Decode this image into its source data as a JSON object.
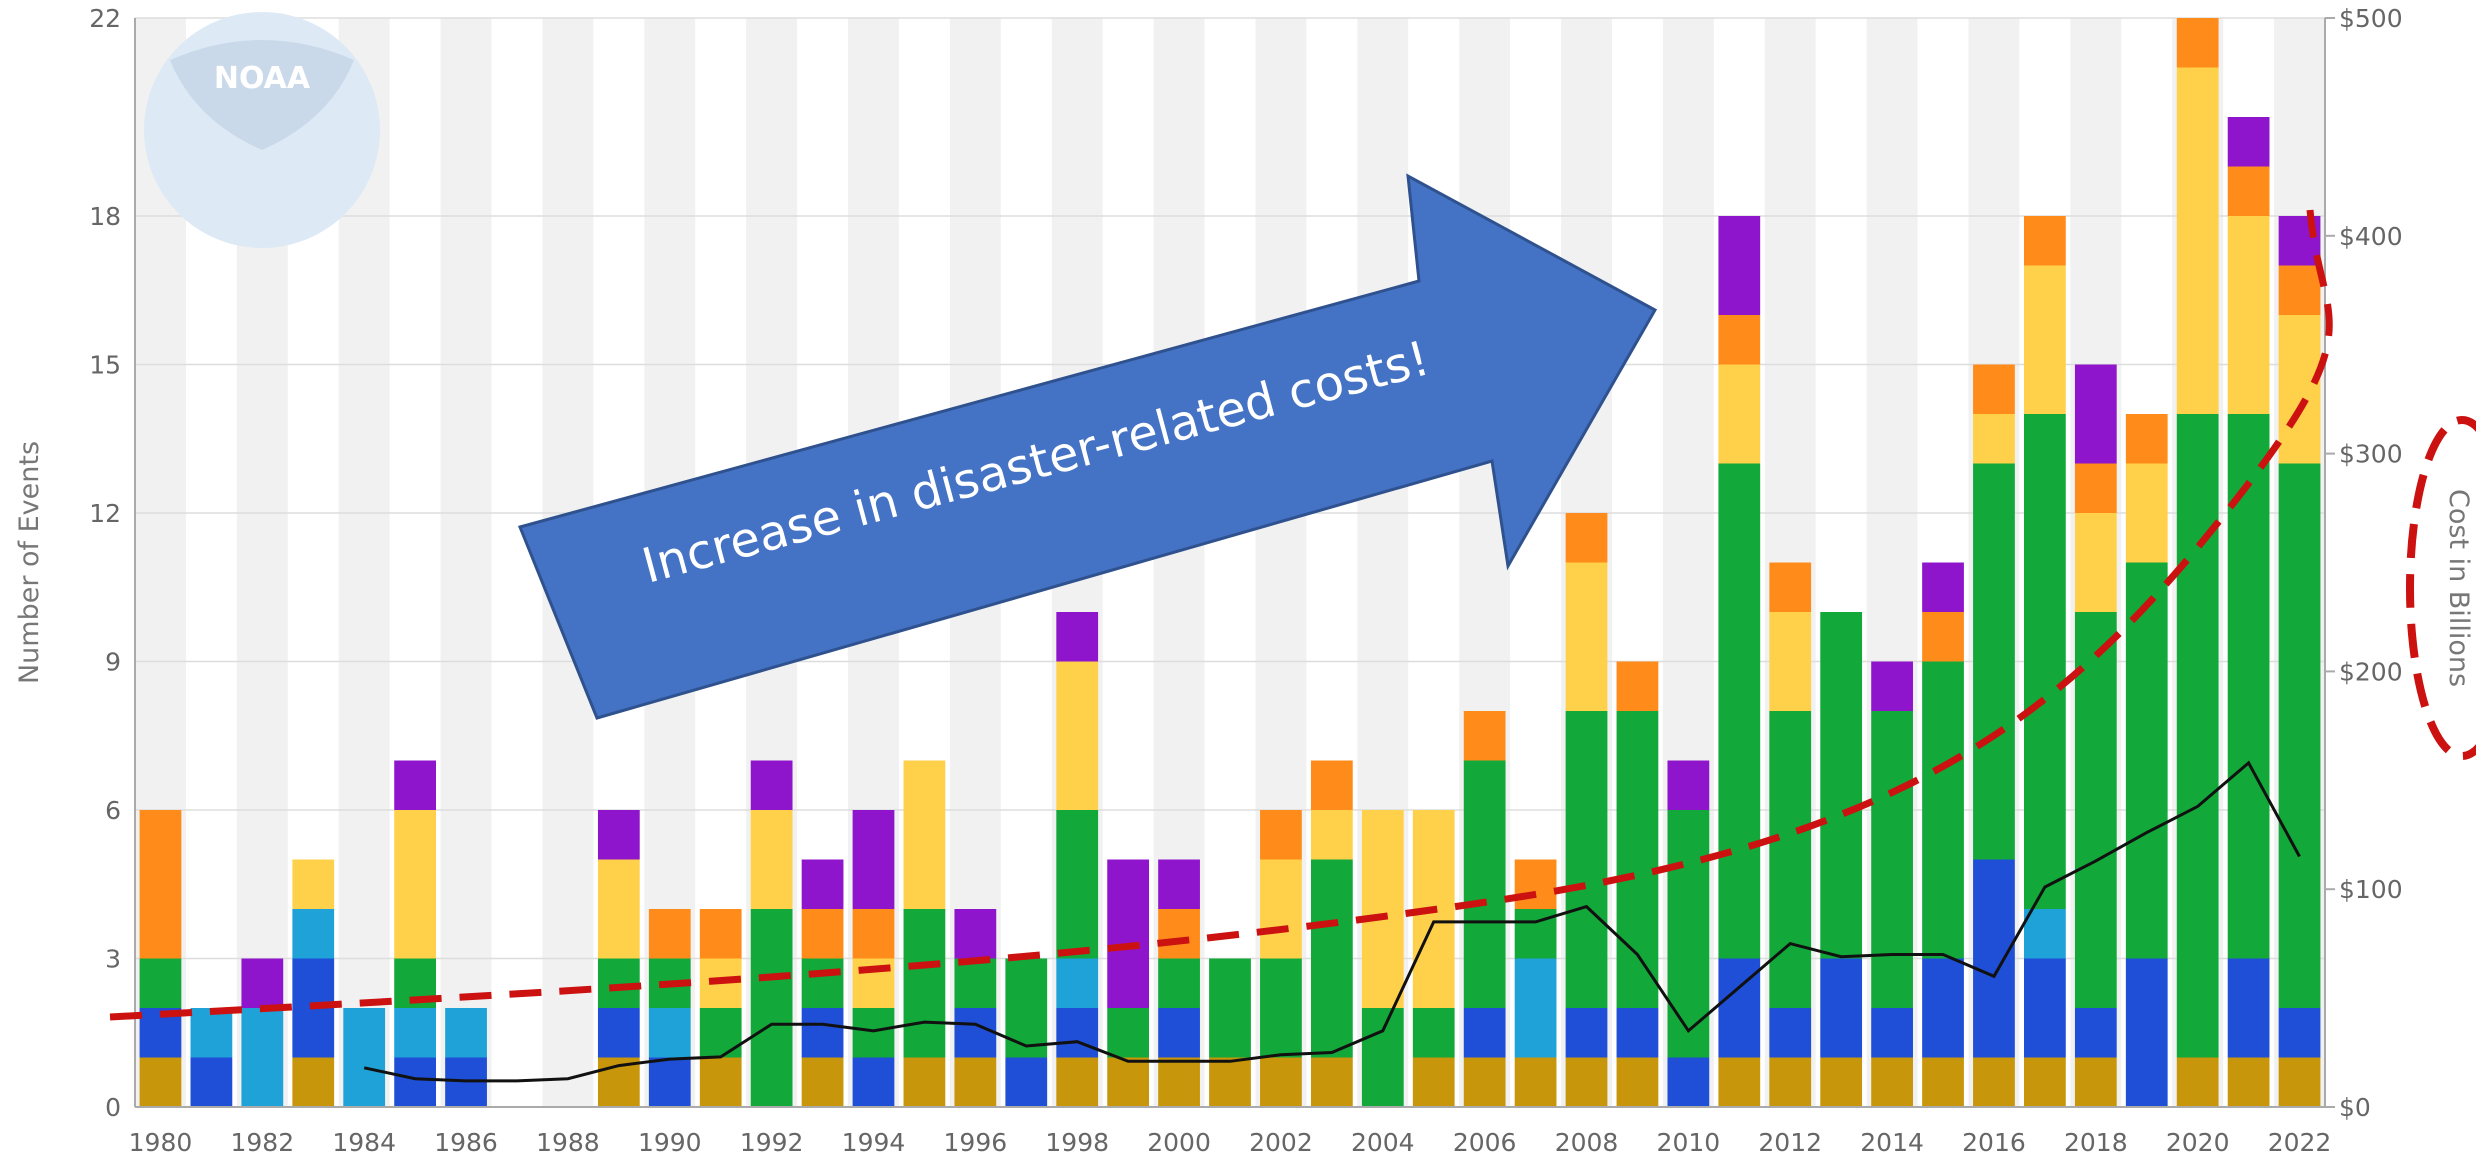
{
  "chart_data": {
    "type": "bar",
    "stacked": true,
    "x_categories": [
      "1980",
      "1981",
      "1982",
      "1983",
      "1984",
      "1985",
      "1986",
      "1987",
      "1988",
      "1989",
      "1990",
      "1991",
      "1992",
      "1993",
      "1994",
      "1995",
      "1996",
      "1997",
      "1998",
      "1999",
      "2000",
      "2001",
      "2002",
      "2003",
      "2004",
      "2005",
      "2006",
      "2007",
      "2008",
      "2009",
      "2010",
      "2011",
      "2012",
      "2013",
      "2014",
      "2015",
      "2016",
      "2017",
      "2018",
      "2019",
      "2020",
      "2021",
      "2022"
    ],
    "x_tick_labels": [
      "1980",
      "1982",
      "1984",
      "1986",
      "1988",
      "1990",
      "1992",
      "1994",
      "1996",
      "1998",
      "2000",
      "2002",
      "2004",
      "2006",
      "2008",
      "2010",
      "2012",
      "2014",
      "2016",
      "2018",
      "2020",
      "2022"
    ],
    "ylabel": "Number of Events",
    "ylim": [
      0,
      22
    ],
    "y_ticks": [
      "0",
      "3",
      "6",
      "9",
      "12",
      "15",
      "18",
      "22"
    ],
    "y2label": "Cost in Billions",
    "y2lim": [
      0,
      500
    ],
    "y2_ticks": [
      "$0",
      "$100",
      "$200",
      "$300",
      "$400",
      "$500"
    ],
    "grid": true,
    "series_colors": [
      "#c8960a",
      "#1f4fd6",
      "#1fa2d8",
      "#12a83a",
      "#ffd04a",
      "#ff8c1a",
      "#8e15cc"
    ],
    "stacks": [
      [
        1,
        1,
        0,
        1,
        0,
        3
      ],
      [
        0,
        1,
        1,
        0,
        0,
        0
      ],
      [
        0,
        0,
        2,
        0,
        0,
        0,
        1
      ],
      [
        1,
        2,
        1,
        0,
        1,
        0
      ],
      [
        0,
        0,
        2,
        0,
        0,
        0
      ],
      [
        0,
        1,
        1,
        1,
        3,
        0,
        1
      ],
      [
        0,
        1,
        1,
        0,
        0,
        0
      ],
      [
        0,
        0,
        0,
        0,
        0,
        0
      ],
      [
        0,
        0,
        0,
        0,
        0,
        0
      ],
      [
        1,
        1,
        0,
        1,
        2,
        0,
        1
      ],
      [
        0,
        1,
        1,
        1,
        0,
        1
      ],
      [
        1,
        0,
        0,
        1,
        1,
        1
      ],
      [
        0,
        0,
        0,
        4,
        2,
        0,
        1
      ],
      [
        1,
        1,
        0,
        1,
        0,
        1,
        1
      ],
      [
        0,
        1,
        0,
        1,
        1,
        1,
        2
      ],
      [
        1,
        0,
        0,
        3,
        3,
        0
      ],
      [
        1,
        1,
        0,
        1,
        0,
        0,
        1
      ],
      [
        0,
        1,
        0,
        2,
        0,
        0
      ],
      [
        1,
        1,
        1,
        3,
        3,
        0,
        1
      ],
      [
        1,
        0,
        0,
        1,
        0,
        0,
        3
      ],
      [
        1,
        1,
        0,
        1,
        0,
        1,
        1
      ],
      [
        1,
        0,
        0,
        2,
        0,
        0
      ],
      [
        1,
        0,
        0,
        2,
        2,
        1
      ],
      [
        1,
        0,
        0,
        4,
        1,
        1
      ],
      [
        0,
        0,
        0,
        2,
        4,
        0
      ],
      [
        1,
        0,
        0,
        1,
        4,
        0
      ],
      [
        1,
        1,
        0,
        5,
        0,
        1
      ],
      [
        1,
        0,
        2,
        1,
        0,
        1
      ],
      [
        1,
        1,
        0,
        6,
        3,
        1
      ],
      [
        1,
        1,
        0,
        6,
        0,
        1
      ],
      [
        0,
        1,
        0,
        5,
        0,
        0,
        1
      ],
      [
        1,
        2,
        0,
        10,
        2,
        1,
        2
      ],
      [
        1,
        1,
        0,
        6,
        2,
        1
      ],
      [
        1,
        2,
        0,
        7,
        0,
        0
      ],
      [
        1,
        1,
        0,
        6,
        0,
        0,
        1
      ],
      [
        1,
        2,
        0,
        6,
        0,
        1,
        1
      ],
      [
        1,
        4,
        0,
        8,
        1,
        1
      ],
      [
        1,
        2,
        1,
        10,
        3,
        1
      ],
      [
        1,
        1,
        0,
        8,
        2,
        1,
        2
      ],
      [
        0,
        3,
        0,
        8,
        2,
        1
      ],
      [
        1,
        0,
        0,
        13,
        7,
        1
      ],
      [
        1,
        2,
        0,
        11,
        4,
        1,
        1
      ],
      [
        1,
        1,
        0,
        11,
        3,
        1,
        1
      ]
    ],
    "cost_line_black": [
      null,
      null,
      null,
      null,
      18,
      13,
      12,
      12,
      13,
      19,
      22,
      23,
      38,
      38,
      35,
      39,
      38,
      28,
      30,
      21,
      21,
      21,
      24,
      25,
      35,
      85,
      85,
      85,
      92,
      70,
      35,
      55,
      75,
      69,
      70,
      70,
      60,
      101,
      113,
      126,
      138,
      158,
      115
    ]
  },
  "callout": {
    "text": "Increase in disaster-related costs!"
  },
  "logo": {
    "text": "NOAA"
  }
}
